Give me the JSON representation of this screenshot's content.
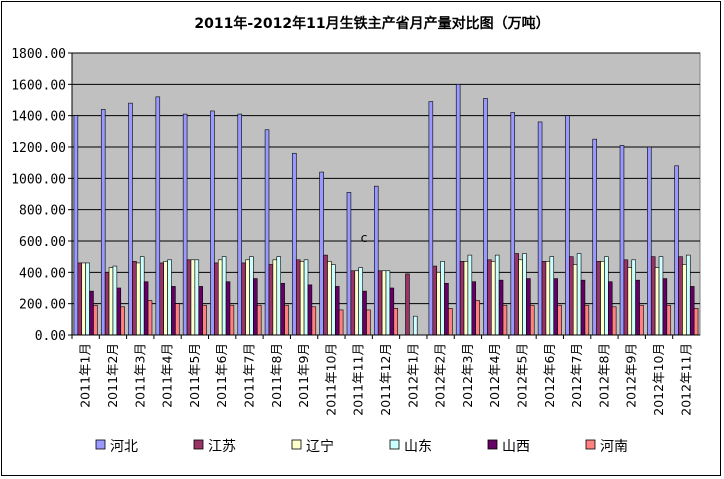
{
  "chart_data": {
    "type": "bar",
    "title": "2011年-2012年11月生铁主产省月产量对比图（万吨）",
    "ylim": [
      0,
      1800
    ],
    "yticks": [
      "0.00",
      "200.00",
      "400.00",
      "600.00",
      "800.00",
      "1000.00",
      "1200.00",
      "1400.00",
      "1600.00",
      "1800.00"
    ],
    "grid": true,
    "legend_position": "bottom",
    "annotation": "c",
    "categories": [
      "2011年1月",
      "2011年2月",
      "2011年3月",
      "2011年4月",
      "2011年5月",
      "2011年6月",
      "2011年7月",
      "2011年8月",
      "2011年9月",
      "2011年10月",
      "2011年11月",
      "2011年12月",
      "2012年1月",
      "2012年2月",
      "2012年3月",
      "2012年4月",
      "2012年5月",
      "2012年6月",
      "2012年7月",
      "2012年8月",
      "2012年9月",
      "2012年10月",
      "2012年11月"
    ],
    "series": [
      {
        "name": "河北",
        "color": "#9999ff",
        "values": [
          1400,
          1440,
          1480,
          1520,
          1410,
          1430,
          1410,
          1310,
          1160,
          1040,
          910,
          950,
          0,
          1490,
          1600,
          1510,
          1420,
          1360,
          1400,
          1250,
          1210,
          1200,
          1080
        ]
      },
      {
        "name": "江苏",
        "color": "#993366",
        "values": [
          460,
          400,
          470,
          460,
          480,
          460,
          460,
          450,
          480,
          510,
          410,
          410,
          390,
          440,
          470,
          480,
          520,
          470,
          500,
          470,
          480,
          500,
          500
        ]
      },
      {
        "name": "辽宁",
        "color": "#ffffcc",
        "values": [
          460,
          430,
          460,
          470,
          480,
          480,
          480,
          480,
          470,
          470,
          410,
          410,
          0,
          400,
          470,
          470,
          480,
          470,
          450,
          470,
          430,
          430,
          450
        ]
      },
      {
        "name": "山东",
        "color": "#ccffff",
        "values": [
          460,
          440,
          500,
          480,
          480,
          500,
          500,
          500,
          480,
          450,
          430,
          410,
          120,
          470,
          510,
          510,
          520,
          500,
          520,
          500,
          480,
          500,
          510
        ]
      },
      {
        "name": "山西",
        "color": "#660066",
        "values": [
          280,
          300,
          340,
          310,
          310,
          340,
          360,
          330,
          320,
          310,
          280,
          300,
          0,
          330,
          340,
          350,
          360,
          360,
          350,
          340,
          350,
          360,
          310
        ]
      },
      {
        "name": "河南",
        "color": "#ff8080",
        "values": [
          190,
          180,
          220,
          200,
          190,
          190,
          190,
          190,
          180,
          160,
          160,
          170,
          0,
          170,
          220,
          190,
          190,
          190,
          190,
          180,
          190,
          190,
          170
        ]
      }
    ]
  }
}
